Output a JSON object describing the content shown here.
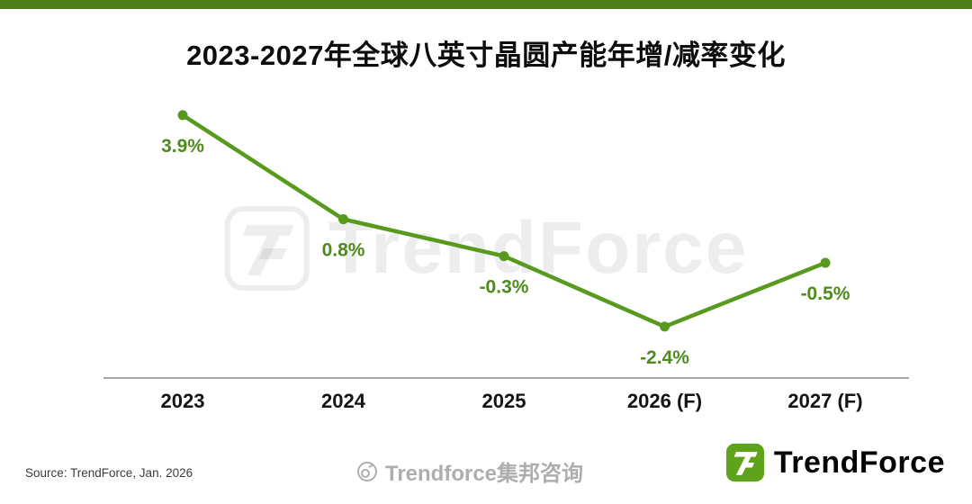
{
  "colors": {
    "accent_green": "#4e7e1c",
    "line_green": "#579a1d",
    "label_green": "#4e8a1c",
    "logo_green": "#5fa31c"
  },
  "title": "2023-2027年全球八英寸晶圆产能年增/减率变化",
  "chart_data": {
    "type": "line",
    "title": "2023-2027年全球八英寸晶圆产能年增/减率变化",
    "categories": [
      "2023",
      "2024",
      "2025",
      "2026 (F)",
      "2027 (F)"
    ],
    "values": [
      3.9,
      0.8,
      -0.3,
      -2.4,
      -0.5
    ],
    "point_labels": [
      "3.9%",
      "0.8%",
      "-0.3%",
      "-2.4%",
      "-0.5%"
    ],
    "xlabel": "",
    "ylabel": "",
    "unit": "%",
    "ylim": [
      -3.5,
      5.0
    ],
    "grid": false,
    "legend": false
  },
  "watermarks": {
    "center_text": "TrendForce",
    "bottom_text": "Trendforce集邦咨询"
  },
  "footer": {
    "source": "Source: TrendForce, Jan. 2026",
    "brand": "TrendForce"
  }
}
